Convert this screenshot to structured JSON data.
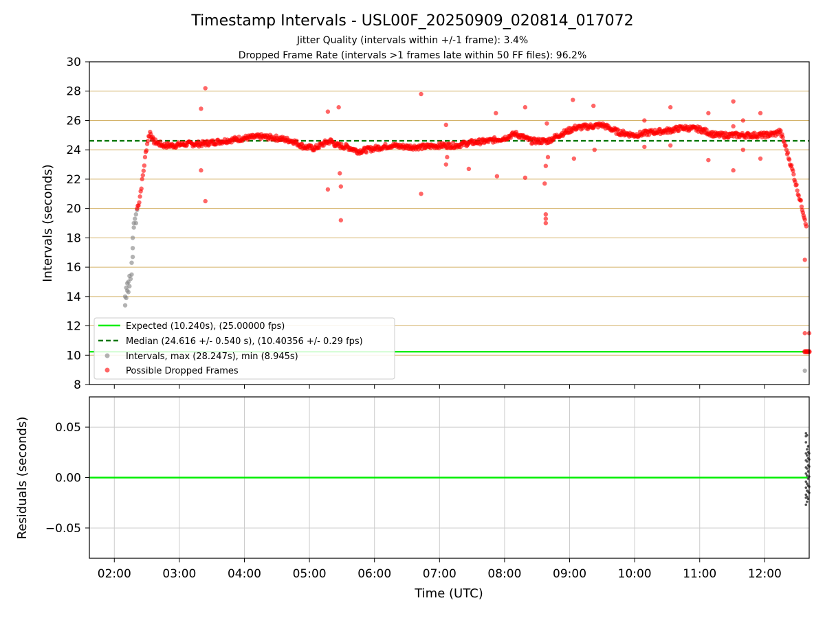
{
  "figure": {
    "title": "Timestamp Intervals - USL00F_20250909_020814_017072",
    "subtitle_1": "Jitter Quality (intervals within +/-1 frame): 3.4%",
    "subtitle_2": "Dropped Frame Rate (intervals >1 frames late within 50 FF files): 96.2%",
    "colors": {
      "expected": "#00ee00",
      "median": "#007700",
      "intervals": "#808080",
      "dropped": "#ff0000",
      "grid_top": "#d4b36a",
      "grid_bottom": "#cccccc"
    }
  },
  "chart_data": [
    {
      "type": "scatter",
      "ylabel": "Intervals (seconds)",
      "xlim": [
        "01:37",
        "12:41"
      ],
      "ylim": [
        8,
        30
      ],
      "yticks": [
        "8",
        "10",
        "12",
        "14",
        "16",
        "18",
        "20",
        "22",
        "24",
        "26",
        "28",
        "30"
      ],
      "grid": "horizontal",
      "legend_position": "lower-left",
      "expected_line": {
        "y": 10.24,
        "label": "Expected (10.240s), (25.00000 fps)"
      },
      "median_line": {
        "y": 24.616,
        "label": "Median (24.616 +/- 0.540 s), (10.40356 +/- 0.29 fps)"
      },
      "series": [
        {
          "name": "Intervals, max (28.247s), min (8.945s)",
          "points": [
            [
              "02:10",
              13.4
            ],
            [
              "02:10",
              14.0
            ],
            [
              "02:11",
              14.6
            ],
            [
              "02:11",
              13.9
            ],
            [
              "02:12",
              14.9
            ],
            [
              "02:12",
              14.4
            ],
            [
              "02:13",
              14.3
            ],
            [
              "02:13",
              15.0
            ],
            [
              "02:14",
              14.7
            ],
            [
              "02:14",
              15.4
            ],
            [
              "02:15",
              15.2
            ],
            [
              "02:16",
              15.5
            ],
            [
              "02:16",
              16.3
            ],
            [
              "02:17",
              16.7
            ],
            [
              "02:17",
              17.3
            ],
            [
              "02:17",
              18.0
            ],
            [
              "02:18",
              18.7
            ],
            [
              "02:18",
              19.0
            ],
            [
              "02:19",
              19.3
            ],
            [
              "02:20",
              19.0
            ],
            [
              "02:20",
              19.6
            ],
            [
              "02:21",
              19.9
            ],
            [
              "02:35",
              24.7
            ],
            [
              "12:37",
              8.945
            ]
          ]
        },
        {
          "name": "Possible Dropped Frames",
          "curve": [
            [
              "02:21",
              20.0
            ],
            [
              "02:23",
              20.5
            ],
            [
              "02:25",
              21.5
            ],
            [
              "02:27",
              22.6
            ],
            [
              "02:29",
              23.8
            ],
            [
              "02:31",
              24.7
            ],
            [
              "02:33",
              25.2
            ],
            [
              "02:36",
              24.6
            ],
            [
              "02:45",
              24.3
            ],
            [
              "02:55",
              24.3
            ],
            [
              "03:05",
              24.4
            ],
            [
              "03:20",
              24.4
            ],
            [
              "03:40",
              24.6
            ],
            [
              "04:00",
              24.8
            ],
            [
              "04:15",
              24.9
            ],
            [
              "04:30",
              24.8
            ],
            [
              "04:45",
              24.6
            ],
            [
              "04:55",
              24.2
            ],
            [
              "05:05",
              24.1
            ],
            [
              "05:15",
              24.5
            ],
            [
              "05:20",
              24.6
            ],
            [
              "05:25",
              24.3
            ],
            [
              "05:35",
              24.2
            ],
            [
              "05:45",
              23.9
            ],
            [
              "06:00",
              24.1
            ],
            [
              "06:15",
              24.3
            ],
            [
              "06:30",
              24.2
            ],
            [
              "06:45",
              24.2
            ],
            [
              "07:00",
              24.3
            ],
            [
              "07:15",
              24.3
            ],
            [
              "07:30",
              24.5
            ],
            [
              "07:45",
              24.6
            ],
            [
              "08:00",
              24.8
            ],
            [
              "08:10",
              25.1
            ],
            [
              "08:25",
              24.6
            ],
            [
              "08:40",
              24.6
            ],
            [
              "08:50",
              25.0
            ],
            [
              "09:05",
              25.5
            ],
            [
              "09:20",
              25.6
            ],
            [
              "09:30",
              25.7
            ],
            [
              "09:45",
              25.2
            ],
            [
              "10:00",
              25.0
            ],
            [
              "10:15",
              25.2
            ],
            [
              "10:30",
              25.3
            ],
            [
              "10:45",
              25.5
            ],
            [
              "11:00",
              25.4
            ],
            [
              "11:15",
              25.0
            ],
            [
              "11:30",
              25.0
            ],
            [
              "11:45",
              25.0
            ],
            [
              "12:00",
              25.0
            ],
            [
              "12:10",
              25.1
            ],
            [
              "12:14",
              25.3
            ],
            [
              "12:18",
              24.5
            ],
            [
              "12:22",
              23.5
            ],
            [
              "12:26",
              22.5
            ],
            [
              "12:30",
              21.3
            ],
            [
              "12:34",
              20.2
            ],
            [
              "12:37",
              19.3
            ],
            [
              "12:39",
              18.7
            ]
          ],
          "outliers": [
            [
              "03:20",
              26.8
            ],
            [
              "03:20",
              22.6
            ],
            [
              "03:24",
              28.2
            ],
            [
              "03:24",
              20.5
            ],
            [
              "05:17",
              26.6
            ],
            [
              "05:17",
              21.3
            ],
            [
              "05:27",
              26.9
            ],
            [
              "05:28",
              22.4
            ],
            [
              "05:29",
              21.5
            ],
            [
              "05:29",
              19.2
            ],
            [
              "06:43",
              27.8
            ],
            [
              "06:43",
              21.0
            ],
            [
              "07:06",
              25.7
            ],
            [
              "07:06",
              23.0
            ],
            [
              "07:07",
              23.5
            ],
            [
              "07:27",
              22.7
            ],
            [
              "07:52",
              26.5
            ],
            [
              "07:53",
              22.2
            ],
            [
              "08:19",
              26.9
            ],
            [
              "08:19",
              22.1
            ],
            [
              "08:37",
              21.7
            ],
            [
              "08:38",
              22.9
            ],
            [
              "08:38",
              19.6
            ],
            [
              "08:38",
              19.3
            ],
            [
              "08:38",
              19.0
            ],
            [
              "08:39",
              25.8
            ],
            [
              "08:40",
              23.5
            ],
            [
              "09:03",
              27.4
            ],
            [
              "09:04",
              23.4
            ],
            [
              "09:22",
              27.0
            ],
            [
              "09:23",
              24.0
            ],
            [
              "10:09",
              26.0
            ],
            [
              "10:09",
              24.2
            ],
            [
              "10:33",
              26.9
            ],
            [
              "10:33",
              24.3
            ],
            [
              "11:08",
              26.5
            ],
            [
              "11:08",
              23.3
            ],
            [
              "11:31",
              27.3
            ],
            [
              "11:31",
              22.6
            ],
            [
              "11:31",
              25.6
            ],
            [
              "11:40",
              26.0
            ],
            [
              "11:40",
              24.0
            ],
            [
              "11:56",
              26.5
            ],
            [
              "11:56",
              23.4
            ],
            [
              "12:37",
              16.5
            ],
            [
              "12:37",
              11.5
            ],
            [
              "12:41",
              11.5
            ]
          ],
          "tail": [
            [
              "12:37",
              10.24
            ],
            [
              "12:38",
              10.24
            ],
            [
              "12:39",
              10.24
            ],
            [
              "12:40",
              10.24
            ],
            [
              "12:41",
              10.24
            ]
          ]
        }
      ]
    },
    {
      "type": "scatter",
      "xlabel": "Time (UTC)",
      "ylabel": "Residuals (seconds)",
      "xlim": [
        "01:37",
        "12:41"
      ],
      "ylim": [
        -0.08,
        0.08
      ],
      "xticks": [
        "02:00",
        "03:00",
        "04:00",
        "05:00",
        "06:00",
        "07:00",
        "08:00",
        "09:00",
        "10:00",
        "11:00",
        "12:00"
      ],
      "yticks": [
        "−0.05",
        "0.00",
        "0.05"
      ],
      "ytick_values": [
        -0.05,
        0.0,
        0.05
      ],
      "grid": true,
      "zero_line": 0.0,
      "series": [
        {
          "name": "Residuals",
          "points": [
            [
              "12:38",
              0.044
            ],
            [
              "12:38",
              0.041
            ],
            [
              "12:38",
              0.035
            ],
            [
              "12:38",
              0.024
            ],
            [
              "12:38",
              0.017
            ],
            [
              "12:38",
              0.01
            ],
            [
              "12:38",
              0.004
            ],
            [
              "12:38",
              -0.004
            ],
            [
              "12:38",
              -0.01
            ],
            [
              "12:38",
              -0.017
            ],
            [
              "12:38",
              -0.02
            ],
            [
              "12:38",
              -0.027
            ],
            [
              "12:39",
              0.042
            ],
            [
              "12:39",
              0.028
            ],
            [
              "12:39",
              0.022
            ],
            [
              "12:39",
              0.016
            ],
            [
              "12:39",
              0.009
            ],
            [
              "12:39",
              0.002
            ],
            [
              "12:39",
              -0.006
            ],
            [
              "12:39",
              -0.013
            ],
            [
              "12:39",
              -0.019
            ],
            [
              "12:39",
              -0.024
            ],
            [
              "12:40",
              0.031
            ],
            [
              "12:40",
              0.025
            ],
            [
              "12:40",
              0.019
            ],
            [
              "12:40",
              0.012
            ],
            [
              "12:40",
              0.006
            ],
            [
              "12:40",
              -0.001
            ],
            [
              "12:40",
              -0.008
            ],
            [
              "12:40",
              -0.014
            ],
            [
              "12:40",
              -0.021
            ],
            [
              "12:41",
              0.024
            ],
            [
              "12:41",
              0.018
            ],
            [
              "12:41",
              0.011
            ],
            [
              "12:41",
              0.001
            ],
            [
              "12:41",
              -0.009
            ],
            [
              "12:41",
              -0.015
            ]
          ]
        }
      ]
    }
  ]
}
